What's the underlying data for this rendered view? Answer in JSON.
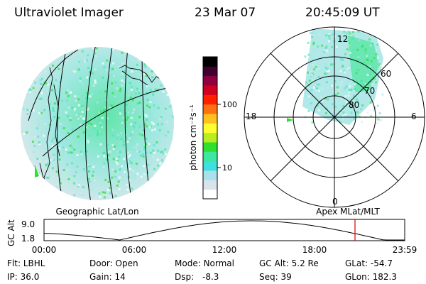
{
  "header": {
    "title": "Ultraviolet Imager",
    "date": "23 Mar 07",
    "time": "20:45:09 UT"
  },
  "colorbar": {
    "unit_label": "photon cm⁻²s⁻¹",
    "ticks": [
      "100",
      "10"
    ],
    "colors": [
      "#ffffff",
      "#d8e4ea",
      "#a8e0ec",
      "#40e0e0",
      "#3ce8a0",
      "#30e030",
      "#b8ee20",
      "#ffff30",
      "#ffc020",
      "#ff7010",
      "#ff2000",
      "#d00020",
      "#900040",
      "#400030",
      "#000000"
    ]
  },
  "left_map": {
    "label": "Geographic Lat/Lon"
  },
  "polar_plot": {
    "label": "Apex MLat/MLT",
    "mlt_labels": {
      "top": "12",
      "left": "18",
      "right": "6",
      "bottom": "0"
    },
    "ring_labels": [
      "60",
      "70",
      "80"
    ]
  },
  "altitude_plot": {
    "ylabel": "GC Alt",
    "yticks": [
      "9.0",
      "1.8"
    ],
    "xticks": [
      "00:00",
      "06:00",
      "12:00",
      "18:00",
      "23:59"
    ],
    "current_time_marker_color": "#e00000"
  },
  "info": {
    "row1": [
      {
        "label": "Flt:",
        "value": "LBHL"
      },
      {
        "label": "Door:",
        "value": "Open"
      },
      {
        "label": "Mode:",
        "value": "Normal"
      },
      {
        "label": "GC Alt:",
        "value": "5.2 Re"
      },
      {
        "label": "GLat:",
        "value": "-54.7"
      }
    ],
    "row2": [
      {
        "label": "IP:",
        "value": "36.0"
      },
      {
        "label": "Gain:",
        "value": "14"
      },
      {
        "label": "Dsp:",
        "value": "-8.3"
      },
      {
        "label": "Seq:",
        "value": "39"
      },
      {
        "label": "GLon:",
        "value": "182.3"
      }
    ]
  }
}
